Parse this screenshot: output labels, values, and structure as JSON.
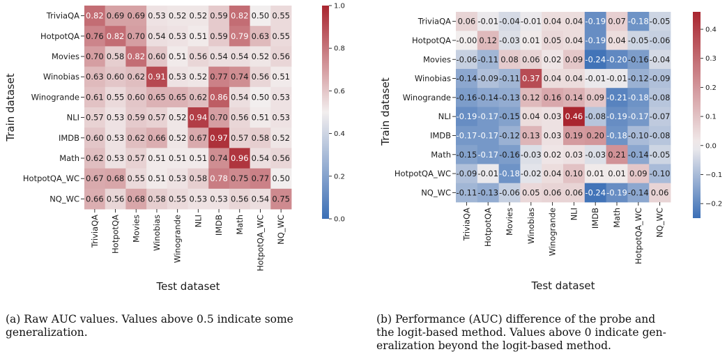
{
  "chart_data": [
    {
      "type": "heatmap",
      "id": "raw-auc",
      "xlabel": "Test dataset",
      "ylabel": "Train dataset",
      "x_categories": [
        "TriviaQA",
        "HotpotQA",
        "Movies",
        "Winobias",
        "Winogrande",
        "NLI",
        "IMDB",
        "Math",
        "HotpotQA_WC",
        "NQ_WC"
      ],
      "y_categories": [
        "TriviaQA",
        "HotpotQA",
        "Movies",
        "Winobias",
        "Winogrande",
        "NLI",
        "IMDB",
        "Math",
        "HotpotQA_WC",
        "NQ_WC"
      ],
      "values": [
        [
          0.82,
          0.69,
          0.69,
          0.53,
          0.52,
          0.52,
          0.59,
          0.82,
          0.5,
          0.55
        ],
        [
          0.76,
          0.82,
          0.7,
          0.54,
          0.53,
          0.51,
          0.59,
          0.79,
          0.63,
          0.55
        ],
        [
          0.7,
          0.58,
          0.82,
          0.6,
          0.51,
          0.56,
          0.54,
          0.54,
          0.52,
          0.56
        ],
        [
          0.63,
          0.6,
          0.62,
          0.91,
          0.53,
          0.52,
          0.77,
          0.74,
          0.56,
          0.51
        ],
        [
          0.61,
          0.55,
          0.6,
          0.65,
          0.65,
          0.62,
          0.86,
          0.54,
          0.5,
          0.53
        ],
        [
          0.57,
          0.53,
          0.59,
          0.57,
          0.52,
          0.94,
          0.7,
          0.56,
          0.51,
          0.53
        ],
        [
          0.6,
          0.53,
          0.62,
          0.66,
          0.52,
          0.67,
          0.97,
          0.57,
          0.58,
          0.52
        ],
        [
          0.62,
          0.53,
          0.57,
          0.51,
          0.51,
          0.51,
          0.74,
          0.96,
          0.54,
          0.56
        ],
        [
          0.67,
          0.68,
          0.55,
          0.51,
          0.53,
          0.58,
          0.78,
          0.75,
          0.77,
          0.5
        ],
        [
          0.66,
          0.56,
          0.68,
          0.58,
          0.55,
          0.53,
          0.53,
          0.56,
          0.54,
          0.75
        ]
      ],
      "colorbar": {
        "min": 0.0,
        "max": 1.0,
        "center": 0.5,
        "ticks": [
          0.0,
          0.2,
          0.4,
          0.6,
          0.8,
          1.0
        ],
        "tick_labels": [
          "0.0",
          "0.2",
          "0.4",
          "0.6",
          "0.8",
          "1.0"
        ]
      },
      "colormap": {
        "low": "#3b6fb6",
        "mid": "#f2eeee",
        "high": "#a9252f"
      }
    },
    {
      "type": "heatmap",
      "id": "auc-difference",
      "xlabel": "Test dataset",
      "ylabel": "Train dataset",
      "x_categories": [
        "TriviaQA",
        "HotpotQA",
        "Movies",
        "Winobias",
        "Winogrande",
        "NLI",
        "IMDB",
        "Math",
        "HotpotQA_WC",
        "NQ_WC"
      ],
      "y_categories": [
        "TriviaQA",
        "HotpotQA",
        "Movies",
        "Winobias",
        "Winogrande",
        "NLI",
        "IMDB",
        "Math",
        "HotpotQA_WC",
        "NQ_WC"
      ],
      "values": [
        [
          0.06,
          -0.01,
          -0.04,
          -0.01,
          0.04,
          0.04,
          -0.19,
          0.07,
          -0.18,
          -0.05
        ],
        [
          -0.0,
          0.12,
          -0.03,
          0.01,
          0.05,
          0.04,
          -0.19,
          0.04,
          -0.05,
          -0.06
        ],
        [
          -0.06,
          -0.11,
          0.08,
          0.06,
          0.02,
          0.09,
          -0.24,
          -0.2,
          -0.16,
          -0.04
        ],
        [
          -0.14,
          -0.09,
          -0.11,
          0.37,
          0.04,
          0.04,
          -0.01,
          -0.01,
          -0.12,
          -0.09
        ],
        [
          -0.16,
          -0.14,
          -0.13,
          0.12,
          0.16,
          0.14,
          0.09,
          -0.21,
          -0.18,
          -0.08
        ],
        [
          -0.19,
          -0.17,
          -0.15,
          0.04,
          0.03,
          0.46,
          -0.08,
          -0.19,
          -0.17,
          -0.07
        ],
        [
          -0.17,
          -0.17,
          -0.12,
          0.13,
          0.03,
          0.19,
          0.2,
          -0.18,
          -0.1,
          -0.08
        ],
        [
          -0.15,
          -0.17,
          -0.16,
          -0.03,
          0.02,
          0.03,
          -0.03,
          0.21,
          -0.14,
          -0.05
        ],
        [
          -0.09,
          -0.01,
          -0.18,
          -0.02,
          0.04,
          0.1,
          0.01,
          0.01,
          0.09,
          -0.1
        ],
        [
          -0.11,
          -0.13,
          -0.06,
          0.05,
          0.06,
          0.06,
          -0.24,
          -0.19,
          -0.14,
          0.06
        ]
      ],
      "value_labels": [
        [
          "0.06",
          "-0.01",
          "-0.04",
          "-0.01",
          "0.04",
          "0.04",
          "-0.19",
          "0.07",
          "-0.18",
          "-0.05"
        ],
        [
          "-0.00",
          "0.12",
          "-0.03",
          "0.01",
          "0.05",
          "0.04",
          "-0.19",
          "0.04",
          "-0.05",
          "-0.06"
        ],
        [
          "-0.06",
          "-0.11",
          "0.08",
          "0.06",
          "0.02",
          "0.09",
          "-0.24",
          "-0.20",
          "-0.16",
          "-0.04"
        ],
        [
          "-0.14",
          "-0.09",
          "-0.11",
          "0.37",
          "0.04",
          "0.04",
          "-0.01",
          "-0.01",
          "-0.12",
          "-0.09"
        ],
        [
          "-0.16",
          "-0.14",
          "-0.13",
          "0.12",
          "0.16",
          "0.14",
          "0.09",
          "-0.21",
          "-0.18",
          "-0.08"
        ],
        [
          "-0.19",
          "-0.17",
          "-0.15",
          "0.04",
          "0.03",
          "0.46",
          "-0.08",
          "-0.19",
          "-0.17",
          "-0.07"
        ],
        [
          "-0.17",
          "-0.17",
          "-0.12",
          "0.13",
          "0.03",
          "0.19",
          "0.20",
          "-0.18",
          "-0.10",
          "-0.08"
        ],
        [
          "-0.15",
          "-0.17",
          "-0.16",
          "-0.03",
          "0.02",
          "0.03",
          "-0.03",
          "0.21",
          "-0.14",
          "-0.05"
        ],
        [
          "-0.09",
          "-0.01",
          "-0.18",
          "-0.02",
          "0.04",
          "0.10",
          "0.01",
          "0.01",
          "0.09",
          "-0.10"
        ],
        [
          "-0.11",
          "-0.13",
          "-0.06",
          "0.05",
          "0.06",
          "0.06",
          "-0.24",
          "-0.19",
          "-0.14",
          "0.06"
        ]
      ],
      "colorbar": {
        "min": -0.25,
        "max": 0.46,
        "center": 0.0,
        "ticks": [
          -0.2,
          -0.1,
          0.0,
          0.1,
          0.2,
          0.3,
          0.4
        ],
        "tick_labels": [
          "−0.2",
          "−0.1",
          "0.0",
          "0.1",
          "0.2",
          "0.3",
          "0.4"
        ]
      },
      "colormap": {
        "low": "#3b6fb6",
        "mid": "#f2eeee",
        "high": "#a9252f"
      }
    }
  ],
  "captions": {
    "left": [
      "(a) Raw AUC values. Values above 0.5 indicate some",
      "generalization."
    ],
    "right": [
      "(b) Performance (AUC) difference of the probe and",
      "the logit-based method. Values above 0 indicate gen-",
      "eralization beyond the logit-based method."
    ]
  }
}
